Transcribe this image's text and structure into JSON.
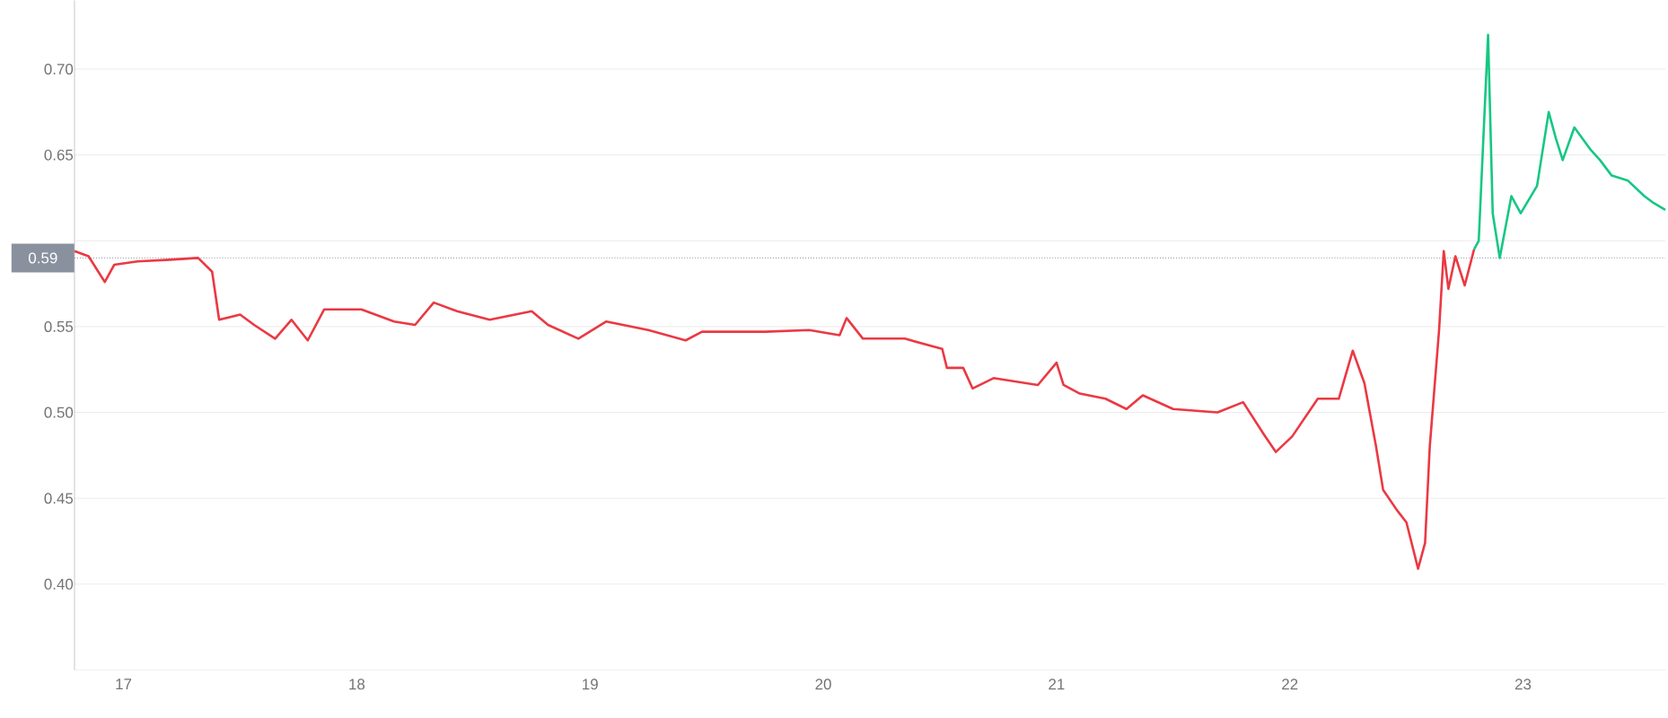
{
  "chart_data": {
    "type": "line",
    "xlim": [
      16.79,
      23.61
    ],
    "ylim": [
      0.35,
      0.74
    ],
    "xticks": [
      17,
      18,
      19,
      20,
      21,
      22,
      23
    ],
    "yticks": [
      {
        "value": 0.4,
        "label": "0.40"
      },
      0.45,
      {
        "value": 0.5,
        "label": "0.50"
      },
      0.55,
      {
        "value": 0.6,
        "label": null
      },
      0.65,
      {
        "value": 0.7,
        "label": "0.70"
      }
    ],
    "grid": "y",
    "line_style": "solid",
    "marker": "none",
    "ref_lines": [
      {
        "axis": "y",
        "value": 0.59,
        "label": "0.59",
        "color": "#8a919e",
        "line_style": "dotted"
      }
    ],
    "series": [
      {
        "color": "#ea3943",
        "x": [
          16.79,
          16.85,
          16.92,
          16.96,
          17.06,
          17.2,
          17.32,
          17.38,
          17.41,
          17.5,
          17.56,
          17.65,
          17.72,
          17.79,
          17.86,
          18.02,
          18.16,
          18.25,
          18.33,
          18.43,
          18.57,
          18.75,
          18.82,
          18.95,
          19.07,
          19.25,
          19.41,
          19.48,
          19.75,
          19.94,
          20.07,
          20.1,
          20.17,
          20.35,
          20.51,
          20.53,
          20.6,
          20.64,
          20.73,
          20.92,
          21.0,
          21.03,
          21.1,
          21.21,
          21.3,
          21.37,
          21.5,
          21.69,
          21.8,
          21.89,
          21.94,
          22.01,
          22.12,
          22.21,
          22.27,
          22.32,
          22.37,
          22.4,
          22.46,
          22.5,
          22.55,
          22.58,
          22.6,
          22.64,
          22.66,
          22.68,
          22.71,
          22.75,
          22.79
        ],
        "values": [
          0.594,
          0.591,
          0.576,
          0.586,
          0.588,
          0.589,
          0.59,
          0.582,
          0.554,
          0.557,
          0.551,
          0.543,
          0.554,
          0.542,
          0.56,
          0.56,
          0.553,
          0.551,
          0.564,
          0.559,
          0.554,
          0.559,
          0.551,
          0.543,
          0.553,
          0.548,
          0.542,
          0.547,
          0.547,
          0.548,
          0.545,
          0.555,
          0.543,
          0.543,
          0.537,
          0.526,
          0.526,
          0.514,
          0.52,
          0.516,
          0.529,
          0.516,
          0.511,
          0.508,
          0.502,
          0.51,
          0.502,
          0.5,
          0.506,
          0.487,
          0.477,
          0.486,
          0.508,
          0.508,
          0.536,
          0.517,
          0.48,
          0.455,
          0.443,
          0.436,
          0.409,
          0.424,
          0.48,
          0.548,
          0.594,
          0.572,
          0.591,
          0.574,
          0.595
        ]
      },
      {
        "color": "#16c784",
        "x": [
          22.79,
          22.81,
          22.85,
          22.87,
          22.9,
          22.95,
          22.99,
          23.06,
          23.11,
          23.14,
          23.17,
          23.22,
          23.29,
          23.33,
          23.38,
          23.45,
          23.52,
          23.56,
          23.61
        ],
        "values": [
          0.595,
          0.6,
          0.72,
          0.616,
          0.59,
          0.626,
          0.616,
          0.632,
          0.675,
          0.66,
          0.647,
          0.666,
          0.653,
          0.647,
          0.638,
          0.635,
          0.626,
          0.622,
          0.618
        ]
      }
    ]
  }
}
